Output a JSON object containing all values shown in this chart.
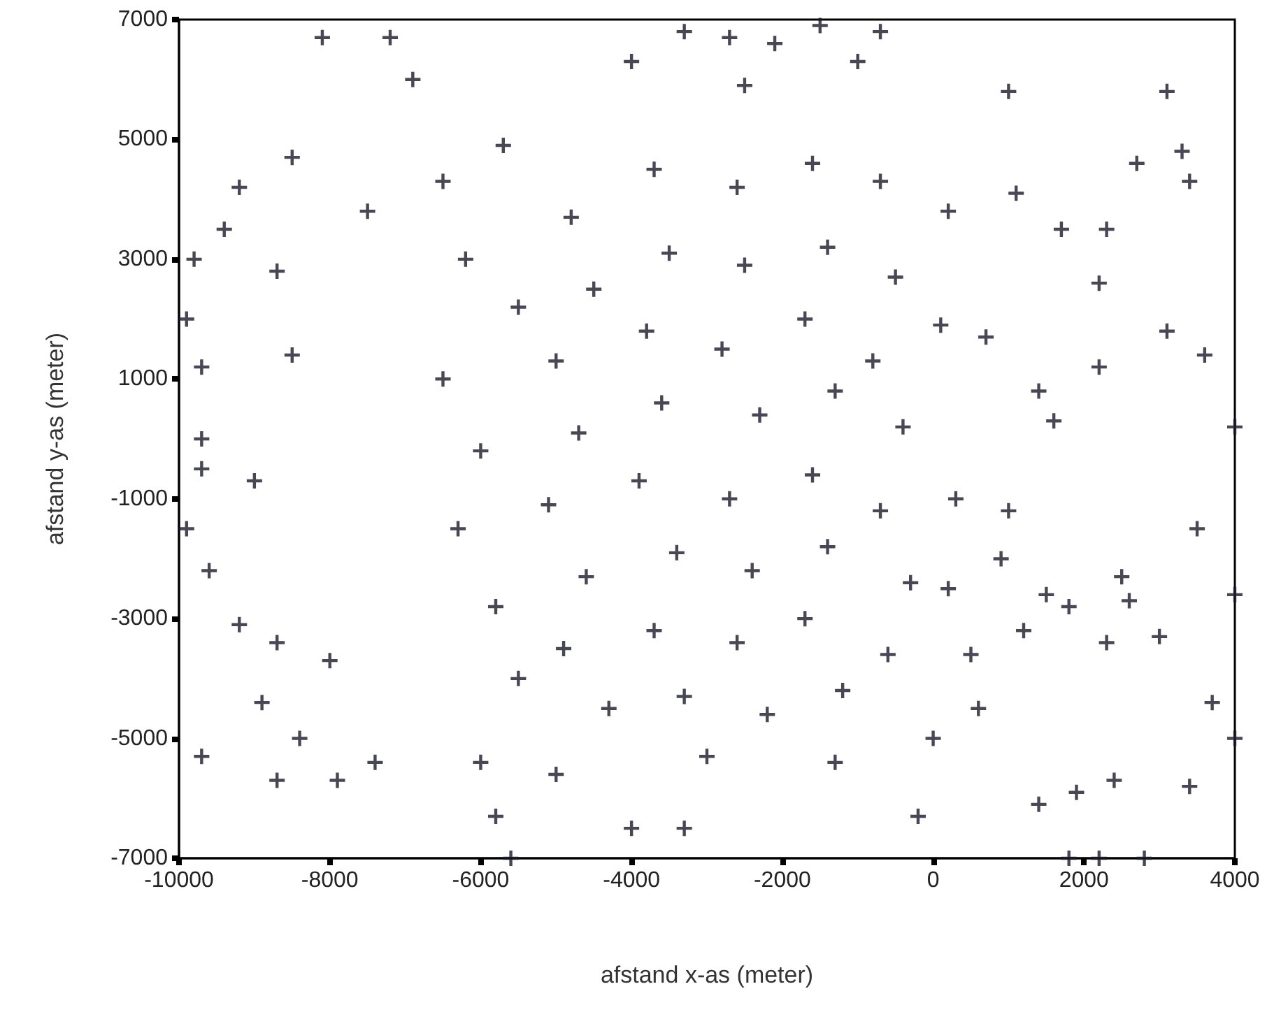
{
  "chart_data": {
    "type": "scatter",
    "xlabel": "afstand x-as (meter)",
    "ylabel": "afstand y-as (meter)",
    "xlim": [
      -10000,
      4000
    ],
    "xticks": [
      -10000,
      -8000,
      -6000,
      -4000,
      -2000,
      0,
      2000,
      4000
    ],
    "ylim": [
      -7000,
      7000
    ],
    "yticks": [
      -7000,
      -5000,
      -3000,
      -1000,
      1000,
      3000,
      5000,
      7000
    ],
    "grid": false,
    "marker": "cross",
    "series": [
      {
        "color": "#1a1a2a",
        "x": [
          -8100,
          -7200,
          -6900,
          -4000,
          -3300,
          -2700,
          -2100,
          -1500,
          -700,
          -2500,
          -1000,
          1000,
          3100,
          3300,
          2700,
          3400,
          2200,
          -9800,
          -9900,
          -9700,
          -9700,
          -9700,
          -9900,
          -9600,
          -9700,
          -8700,
          -7900,
          -7400,
          -5800,
          -5600,
          -4000,
          -3300,
          -200,
          1800,
          2200,
          2800,
          1400,
          1900,
          2400,
          3400,
          4000,
          3700,
          4000,
          4000,
          3600,
          3100,
          2200,
          1400,
          3500,
          -9200,
          -9400,
          -8700,
          -8000,
          -9200,
          -8900,
          -8400,
          -6000,
          -5000,
          -9000,
          -8500,
          -8700,
          -7500,
          -5700,
          -8500,
          -6500,
          1700,
          1100,
          2300,
          700,
          1500,
          2500,
          3000,
          0,
          600,
          -1300,
          -3000,
          -6200,
          -5500,
          -6500,
          -6000,
          -6300,
          -5800,
          -5500,
          -4800,
          -4500,
          -5000,
          -4700,
          -5100,
          -4600,
          -4900,
          -4300,
          -3700,
          -3500,
          -3800,
          -3600,
          -3900,
          -3400,
          -3700,
          -3300,
          -2600,
          -2500,
          -2800,
          -2300,
          -2700,
          -2400,
          -2600,
          -2200,
          -1600,
          -1400,
          -1700,
          -1300,
          -1600,
          -1400,
          -1700,
          -1200,
          -700,
          -500,
          -800,
          -400,
          -700,
          -300,
          -600,
          200,
          100,
          300,
          200,
          500,
          900,
          1200,
          1800,
          2300,
          2600,
          1000,
          1600
        ],
        "values": [
          6700,
          6700,
          6000,
          6300,
          6800,
          6700,
          6600,
          6900,
          6800,
          5900,
          6300,
          5800,
          5800,
          4800,
          4600,
          4300,
          2600,
          3000,
          2000,
          1200,
          0,
          -500,
          -1500,
          -2200,
          -5300,
          -5700,
          -5700,
          -5400,
          -6300,
          -7000,
          -6500,
          -6500,
          -6300,
          -7000,
          -7000,
          -7000,
          -6100,
          -5900,
          -5700,
          -5800,
          -5000,
          -4400,
          -2600,
          200,
          1400,
          1800,
          1200,
          800,
          -1500,
          4200,
          3500,
          -3400,
          -3700,
          -3100,
          -4400,
          -5000,
          -5400,
          -5600,
          -700,
          1400,
          2800,
          3800,
          4900,
          4700,
          4300,
          3500,
          4100,
          3500,
          1700,
          -2600,
          -2300,
          -3300,
          -5000,
          -4500,
          -5400,
          -5300,
          3000,
          2200,
          1000,
          -200,
          -1500,
          -2800,
          -4000,
          3700,
          2500,
          1300,
          100,
          -1100,
          -2300,
          -3500,
          -4500,
          4500,
          3100,
          1800,
          600,
          -700,
          -1900,
          -3200,
          -4300,
          4200,
          2900,
          1500,
          400,
          -1000,
          -2200,
          -3400,
          -4600,
          4600,
          3200,
          2000,
          800,
          -600,
          -1800,
          -3000,
          -4200,
          4300,
          2700,
          1300,
          200,
          -1200,
          -2400,
          -3600,
          3800,
          1900,
          -1000,
          -2500,
          -3600,
          -2000,
          -3200,
          -2800,
          -3400,
          -2700,
          -1200,
          300
        ]
      }
    ]
  }
}
